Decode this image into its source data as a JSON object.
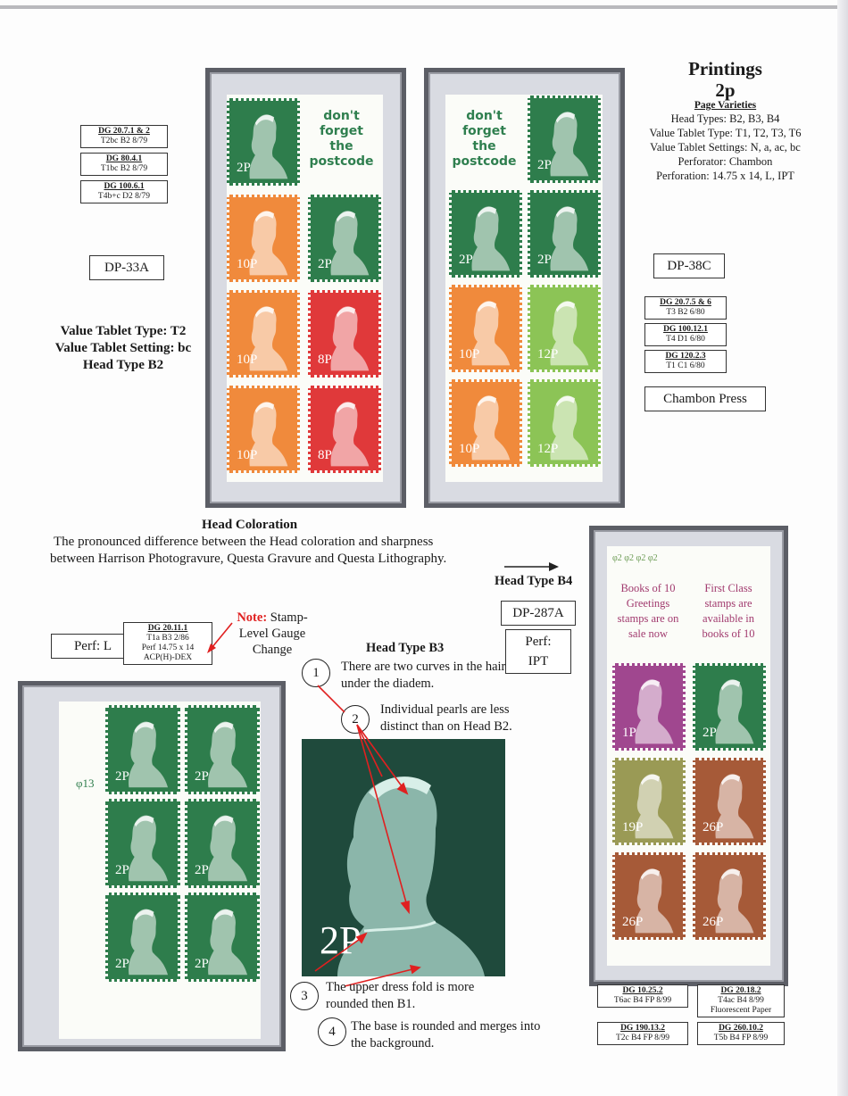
{
  "header": {
    "title": "Printings",
    "value": "2p",
    "subtitle": "Page Varieties",
    "lines": [
      "Head Types: B2, B3, B4",
      "Value Tablet Type: T1, T2, T3, T6",
      "Value Tablet Settings: N, a, ac, bc",
      "Perforator: Chambon",
      "Perforation: 14.75 x 14, L, IPT"
    ]
  },
  "left_pane": {
    "slogan": [
      "don't",
      "forget",
      "the",
      "postcode"
    ],
    "values": [
      "2P",
      "10P",
      "2P",
      "10P",
      "8P",
      "10P",
      "8P"
    ],
    "dg": [
      {
        "ref": "DG 20.7.1 & 2",
        "detail": "T2bc  B2   8/79"
      },
      {
        "ref": "DG 80.4.1",
        "detail": "T1bc  B2   8/79"
      },
      {
        "ref": "DG 100.6.1",
        "detail": "T4b+c  D2   8/79"
      }
    ],
    "label": "DP-33A",
    "notes": [
      "Value Tablet Type: T2",
      "Value Tablet Setting: bc",
      "Head Type B2"
    ]
  },
  "right_pane": {
    "slogan": [
      "don't",
      "forget",
      "the",
      "postcode"
    ],
    "values": [
      "2P",
      "2P",
      "2P",
      "10P",
      "12P",
      "10P",
      "12P"
    ],
    "label": "DP-38C",
    "dg": [
      {
        "ref": "DG 20.7.5 & 6",
        "detail": "T3   B2   6/80"
      },
      {
        "ref": "DG 100.12.1",
        "detail": "T4   D1   6/80"
      },
      {
        "ref": "DG 120.2.3",
        "detail": "T1   C1   6/80"
      }
    ],
    "press": "Chambon Press"
  },
  "coloration": {
    "title": "Head Coloration",
    "text": "The pronounced difference between the Head coloration and sharpness between Harrison Photogravure, Questa Gravure and Questa Lithography."
  },
  "cylinder_block": {
    "perf": "Perf: L",
    "dg": {
      "ref": "DG 20.11.1",
      "lines": [
        "T1a   B3   2/86",
        "Perf 14.75 x 14",
        "ACP(H)-DEX"
      ]
    },
    "note_label": "Note:",
    "note_text": "Stamp-Level Gauge Change",
    "cylinder": "φ13",
    "values": [
      "2P",
      "2P",
      "2P",
      "2P",
      "2P",
      "2P"
    ]
  },
  "head_b3": {
    "title": "Head Type B3",
    "points": [
      {
        "n": "1",
        "text": "There are two curves in the hair under the diadem."
      },
      {
        "n": "2",
        "text": "Individual pearls are less distinct than on Head B2."
      },
      {
        "n": "3",
        "text": "The upper dress fold is more rounded then B1."
      },
      {
        "n": "4",
        "text": "The base is rounded and merges into the background."
      }
    ],
    "photo_value": "2P"
  },
  "head_b4": {
    "title": "Head Type B4",
    "label": "DP-287A",
    "perf": "Perf: IPT",
    "cylinders": "φ2  φ2  φ2  φ2",
    "promo_left": "Books of 10 Greetings stamps are on sale now",
    "promo_right": "First Class stamps are available in books of 10",
    "values": [
      "1P",
      "2P",
      "19P",
      "26P",
      "26P",
      "26P"
    ],
    "dg": [
      {
        "ref": "DG 10.25.2",
        "lines": [
          "T6ac  B4 FP 8/99"
        ]
      },
      {
        "ref": "DG 20.18.2",
        "lines": [
          "T4ac   B4   8/99",
          "Fluorescent Paper"
        ]
      },
      {
        "ref": "DG 190.13.2",
        "lines": [
          "T2c  B4 FP 8/99"
        ]
      },
      {
        "ref": "DG 260.10.2",
        "lines": [
          "T5b  B4 FP 8/99"
        ]
      }
    ]
  },
  "colors": {
    "green": "#2e7d4c",
    "orange": "#f08a3c",
    "red": "#e0393a",
    "lime": "#8cc456",
    "purple": "#a0478f",
    "olive": "#9a9a55",
    "brown": "#a65a38",
    "frame": "#5c5e66"
  }
}
